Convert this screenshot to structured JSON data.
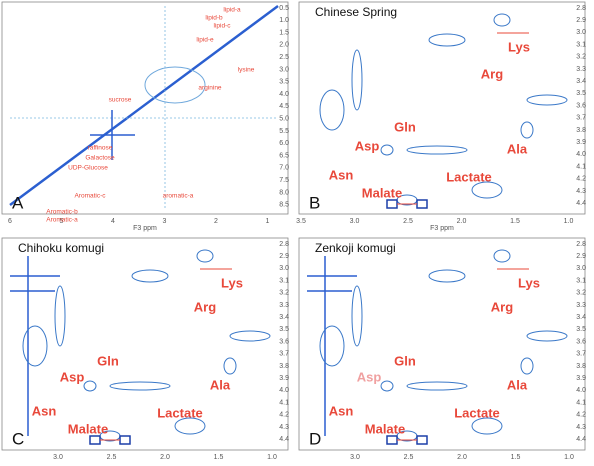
{
  "panels": [
    {
      "letter": "A",
      "axis_label": "F3 ppm",
      "xticks": [
        "6",
        "5",
        "4",
        "3",
        "2",
        "1"
      ],
      "yticks": [
        "0.5",
        "1.0",
        "1.5",
        "2.0",
        "2.5",
        "3.0",
        "3.5",
        "4.0",
        "4.5",
        "5.0",
        "5.5",
        "6.0",
        "6.5",
        "7.0",
        "7.5",
        "8.0",
        "8.5"
      ],
      "labels": [
        "lipid-a",
        "lipid-b",
        "lipid-c",
        "lipid-e",
        "lysine",
        "arginine",
        "sucrose",
        "raffinose",
        "Galactose",
        "UDP-Glucose",
        "Aromatic-c",
        "Aromatic-a",
        "Aromatic-b",
        "aromatic-a"
      ]
    },
    {
      "letter": "B",
      "title": "Chinese Spring",
      "axis_label": "F3 ppm",
      "xticks": [
        "3.5",
        "3.0",
        "2.5",
        "2.0",
        "1.5",
        "1.0"
      ],
      "yticks": [
        "2.8",
        "2.9",
        "3.0",
        "3.1",
        "3.2",
        "3.3",
        "3.4",
        "3.5",
        "3.6",
        "3.7",
        "3.8",
        "3.9",
        "4.0",
        "4.1",
        "4.2",
        "4.3",
        "4.4"
      ],
      "labels": [
        "Lys",
        "Arg",
        "Gln",
        "Asp",
        "Ala",
        "Asn",
        "Lactate",
        "Malate"
      ]
    },
    {
      "letter": "C",
      "title": "Chihoku komugi",
      "xticks": [
        "3.0",
        "2.5",
        "2.0",
        "1.5",
        "1.0"
      ],
      "yticks": [
        "2.8",
        "2.9",
        "3.0",
        "3.1",
        "3.2",
        "3.3",
        "3.4",
        "3.5",
        "3.6",
        "3.7",
        "3.8",
        "3.9",
        "4.0",
        "4.1",
        "4.2",
        "4.3",
        "4.4"
      ],
      "labels": [
        "Lys",
        "Arg",
        "Gln",
        "Asp",
        "Ala",
        "Asn",
        "Lactate",
        "Malate"
      ]
    },
    {
      "letter": "D",
      "title": "Zenkoji komugi",
      "xticks": [
        "3.0",
        "2.5",
        "2.0",
        "1.5",
        "1.0"
      ],
      "yticks": [
        "2.8",
        "2.9",
        "3.0",
        "3.1",
        "3.2",
        "3.3",
        "3.4",
        "3.5",
        "3.6",
        "3.7",
        "3.8",
        "3.9",
        "4.0",
        "4.1",
        "4.2",
        "4.3",
        "4.4"
      ],
      "labels": [
        "Lys",
        "Arg",
        "Gln",
        "Asp",
        "Ala",
        "Asn",
        "Lactate",
        "Malate"
      ]
    }
  ]
}
